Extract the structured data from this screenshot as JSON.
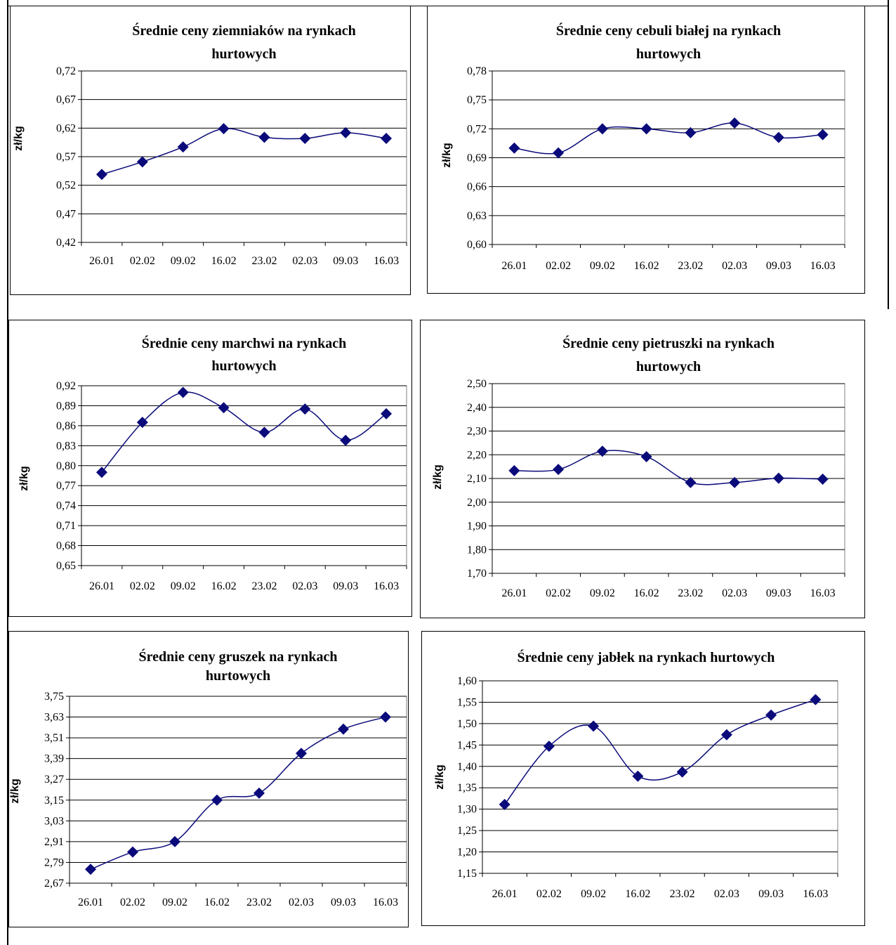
{
  "chart_data": [
    {
      "type": "line",
      "title_lines": [
        "Średnie ceny ziemniaków  na rynkach",
        "hurtowych"
      ],
      "ylabel": "zł/kg",
      "categories": [
        "26.01",
        "02.02",
        "09.02",
        "16.02",
        "23.02",
        "02.03",
        "09.03",
        "16.03"
      ],
      "yticks": [
        "0,42",
        "0,47",
        "0,52",
        "0,57",
        "0,62",
        "0,67",
        "0,72"
      ],
      "ylim": [
        0.42,
        0.72
      ],
      "series": [
        {
          "values": [
            0.539,
            0.561,
            0.587,
            0.619,
            0.604,
            0.602,
            0.612,
            0.602
          ]
        }
      ]
    },
    {
      "type": "line",
      "title_lines": [
        "Średnie ceny cebuli białej na rynkach",
        "hurtowych"
      ],
      "ylabel": "zł/kg",
      "categories": [
        "26.01",
        "02.02",
        "09.02",
        "16.02",
        "23.02",
        "02.03",
        "09.03",
        "16.03"
      ],
      "yticks": [
        "0,60",
        "0,63",
        "0,66",
        "0,69",
        "0,72",
        "0,75",
        "0,78"
      ],
      "ylim": [
        0.6,
        0.78
      ],
      "series": [
        {
          "values": [
            0.7,
            0.695,
            0.72,
            0.72,
            0.716,
            0.726,
            0.711,
            0.714
          ]
        }
      ]
    },
    {
      "type": "line",
      "title_lines": [
        "Średnie ceny marchwi  na rynkach",
        "hurtowych"
      ],
      "ylabel": "zł/kg",
      "categories": [
        "26.01",
        "02.02",
        "09.02",
        "16.02",
        "23.02",
        "02.03",
        "09.03",
        "16.03"
      ],
      "yticks": [
        "0,65",
        "0,68",
        "0,71",
        "0,74",
        "0,77",
        "0,80",
        "0,83",
        "0,86",
        "0,89",
        "0,92"
      ],
      "ylim": [
        0.65,
        0.92
      ],
      "series": [
        {
          "values": [
            0.79,
            0.865,
            0.91,
            0.887,
            0.85,
            0.885,
            0.838,
            0.878
          ]
        }
      ]
    },
    {
      "type": "line",
      "title_lines": [
        "Średnie ceny pietruszki na rynkach",
        "hurtowych"
      ],
      "ylabel": "zł/kg",
      "categories": [
        "26.01",
        "02.02",
        "09.02",
        "16.02",
        "23.02",
        "02.03",
        "09.03",
        "16.03"
      ],
      "yticks": [
        "1,70",
        "1,80",
        "1,90",
        "2,00",
        "2,10",
        "2,20",
        "2,30",
        "2,40",
        "2,50"
      ],
      "ylim": [
        1.7,
        2.5
      ],
      "series": [
        {
          "values": [
            2.133,
            2.138,
            2.215,
            2.192,
            2.083,
            2.083,
            2.101,
            2.097
          ]
        }
      ]
    },
    {
      "type": "line",
      "title_lines": [
        "Średnie ceny gruszek na rynkach",
        "hurtowych"
      ],
      "ylabel": "zł/kg",
      "categories": [
        "26.01",
        "02.02",
        "09.02",
        "16.02",
        "23.02",
        "02.03",
        "09.03",
        "16.03"
      ],
      "yticks": [
        "2,67",
        "2,79",
        "2,91",
        "3,03",
        "3,15",
        "3,27",
        "3,39",
        "3,51",
        "3,63",
        "3,75"
      ],
      "ylim": [
        2.67,
        3.75
      ],
      "series": [
        {
          "values": [
            2.75,
            2.85,
            2.91,
            3.15,
            3.19,
            3.42,
            3.56,
            3.63
          ]
        }
      ]
    },
    {
      "type": "line",
      "title_lines": [
        "Średnie ceny jabłek  na rynkach hurtowych"
      ],
      "ylabel": "zł/kg",
      "categories": [
        "26.01",
        "02.02",
        "09.02",
        "16.02",
        "23.02",
        "02.03",
        "09.03",
        "16.03"
      ],
      "yticks": [
        "1,15",
        "1,20",
        "1,25",
        "1,30",
        "1,35",
        "1,40",
        "1,45",
        "1,50",
        "1,55",
        "1,60"
      ],
      "ylim": [
        1.15,
        1.6
      ],
      "series": [
        {
          "values": [
            1.311,
            1.447,
            1.494,
            1.377,
            1.387,
            1.474,
            1.52,
            1.556
          ]
        }
      ]
    }
  ],
  "style": {
    "line_color": "#0a0a7a",
    "marker_color": "#0a0a7a",
    "grid_color": "#000000",
    "plot_border": "#808080"
  }
}
